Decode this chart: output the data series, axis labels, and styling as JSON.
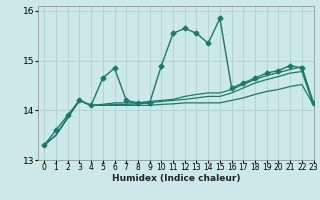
{
  "title": "",
  "xlabel": "Humidex (Indice chaleur)",
  "xlim": [
    -0.5,
    23
  ],
  "ylim": [
    13,
    16.1
  ],
  "yticks": [
    13,
    14,
    15,
    16
  ],
  "xticks": [
    0,
    1,
    2,
    3,
    4,
    5,
    6,
    7,
    8,
    9,
    10,
    11,
    12,
    13,
    14,
    15,
    16,
    17,
    18,
    19,
    20,
    21,
    22,
    23
  ],
  "bg_color": "#cce8e8",
  "grid_color": "#aacccc",
  "line_color": "#1a7a6a",
  "lines": [
    {
      "x": [
        0,
        1,
        2,
        3,
        4,
        5,
        6,
        7,
        8,
        9,
        10,
        11,
        12,
        13,
        14,
        15,
        16,
        17,
        18,
        19,
        20,
        21,
        22,
        23
      ],
      "y": [
        13.3,
        13.6,
        13.9,
        14.2,
        14.1,
        14.65,
        14.85,
        14.2,
        14.15,
        14.15,
        14.9,
        15.55,
        15.65,
        15.55,
        15.35,
        15.85,
        14.45,
        14.55,
        14.65,
        14.75,
        14.8,
        14.9,
        14.85,
        14.15
      ],
      "marker": "D",
      "markersize": 2.5,
      "linewidth": 1.0
    },
    {
      "x": [
        0,
        1,
        2,
        3,
        4,
        5,
        6,
        7,
        8,
        9,
        10,
        11,
        12,
        13,
        14,
        15,
        16,
        17,
        18,
        19,
        20,
        21,
        22,
        23
      ],
      "y": [
        13.3,
        13.5,
        13.85,
        14.2,
        14.1,
        14.1,
        14.1,
        14.1,
        14.1,
        14.1,
        14.12,
        14.13,
        14.15,
        14.15,
        14.15,
        14.15,
        14.2,
        14.25,
        14.32,
        14.38,
        14.42,
        14.48,
        14.52,
        14.1
      ],
      "marker": null,
      "markersize": 0,
      "linewidth": 0.9
    },
    {
      "x": [
        0,
        1,
        2,
        3,
        4,
        5,
        6,
        7,
        8,
        9,
        10,
        11,
        12,
        13,
        14,
        15,
        16,
        17,
        18,
        19,
        20,
        21,
        22,
        23
      ],
      "y": [
        13.3,
        13.5,
        13.85,
        14.2,
        14.1,
        14.1,
        14.12,
        14.12,
        14.13,
        14.15,
        14.18,
        14.2,
        14.22,
        14.25,
        14.28,
        14.28,
        14.35,
        14.45,
        14.55,
        14.62,
        14.68,
        14.75,
        14.78,
        14.1
      ],
      "marker": null,
      "markersize": 0,
      "linewidth": 0.9
    },
    {
      "x": [
        0,
        1,
        2,
        3,
        4,
        5,
        6,
        7,
        8,
        9,
        10,
        11,
        12,
        13,
        14,
        15,
        16,
        17,
        18,
        19,
        20,
        21,
        22,
        23
      ],
      "y": [
        13.3,
        13.5,
        13.85,
        14.2,
        14.1,
        14.12,
        14.15,
        14.15,
        14.15,
        14.18,
        14.2,
        14.22,
        14.28,
        14.32,
        14.35,
        14.35,
        14.42,
        14.52,
        14.62,
        14.7,
        14.76,
        14.82,
        14.88,
        14.1
      ],
      "marker": null,
      "markersize": 0,
      "linewidth": 0.9
    }
  ]
}
